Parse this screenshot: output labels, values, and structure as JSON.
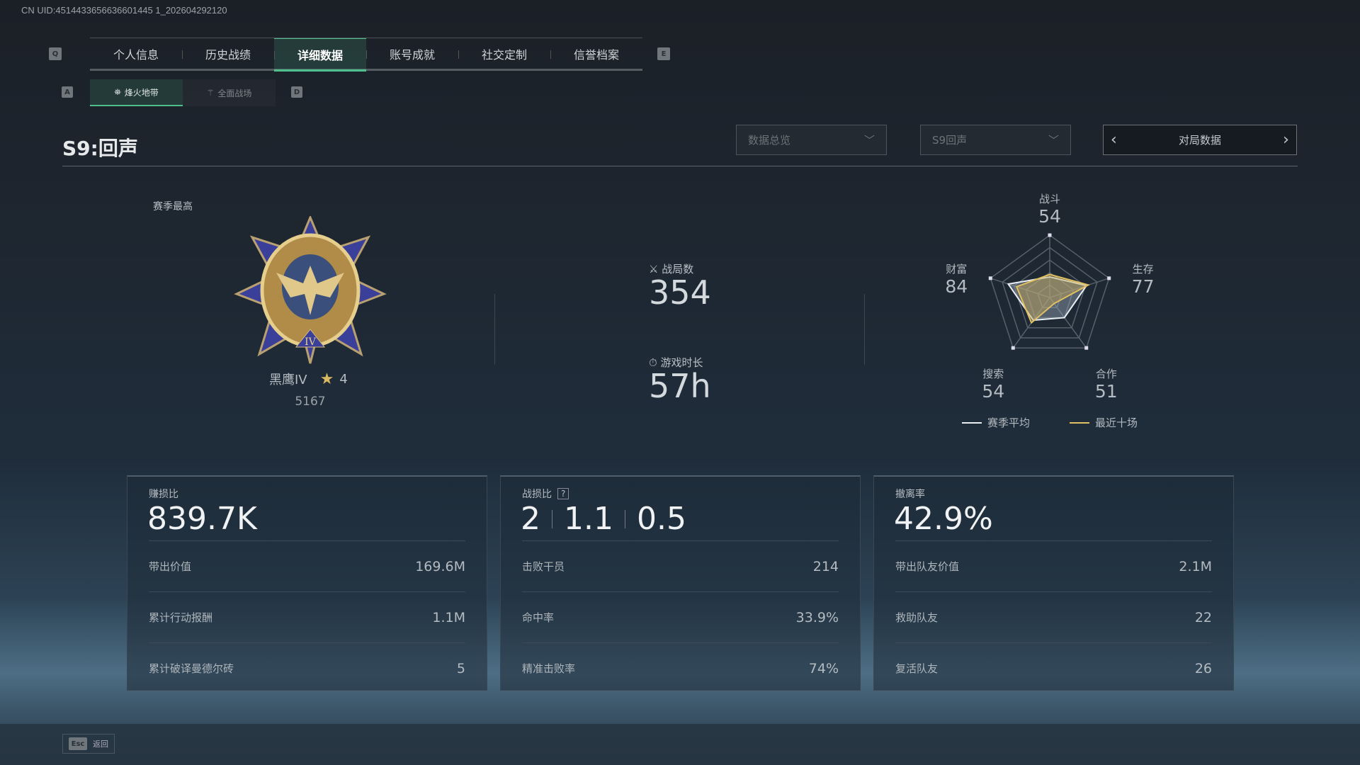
{
  "uid_text": "CN UID:4514433656636601445 1_202604292120",
  "tabs": {
    "prev_key": "Q",
    "next_key": "E",
    "items": [
      "个人信息",
      "历史战绩",
      "详细数据",
      "账号成就",
      "社交定制",
      "信誉档案"
    ],
    "active": "详细数据"
  },
  "subtabs": {
    "prev_key": "A",
    "next_key": "D",
    "items": [
      "烽火地带",
      "全面战场"
    ],
    "active": "烽火地带"
  },
  "season_title": "S9:回声",
  "filters": {
    "overview": "数据总览",
    "season": "S9回声",
    "mode": "对局数据"
  },
  "rank": {
    "label": "赛季最高",
    "name": "黑鹰IV",
    "stars": "4",
    "score": "5167"
  },
  "summary": {
    "matches_label": "战局数",
    "matches": "354",
    "time_label": "游戏时长",
    "time": "57h"
  },
  "chart_data": {
    "type": "radar",
    "axes": [
      "战斗",
      "生存",
      "合作",
      "搜索",
      "财富"
    ],
    "axis_values": [
      "54",
      "77",
      "51",
      "54",
      "84"
    ],
    "range": [
      0,
      100
    ],
    "series": [
      {
        "name": "赛季平均",
        "color": "#e8eef2",
        "values": [
          33,
          62,
          40,
          45,
          70
        ]
      },
      {
        "name": "最近十场",
        "color": "#e0c060",
        "values": [
          37,
          65,
          12,
          50,
          56
        ]
      }
    ]
  },
  "cards": [
    {
      "title": "赚损比",
      "value": "839.7K",
      "rows": [
        {
          "label": "带出价值",
          "value": "169.6M"
        },
        {
          "label": "累计行动报酬",
          "value": "1.1M"
        },
        {
          "label": "累计破译曼德尔砖",
          "value": "5"
        }
      ]
    },
    {
      "title": "战损比",
      "help": "?",
      "values": [
        "2",
        "1.1",
        "0.5"
      ],
      "rows": [
        {
          "label": "击败干员",
          "value": "214"
        },
        {
          "label": "命中率",
          "value": "33.9%"
        },
        {
          "label": "精准击败率",
          "value": "74%"
        }
      ]
    },
    {
      "title": "撤离率",
      "value": "42.9%",
      "rows": [
        {
          "label": "带出队友价值",
          "value": "2.1M"
        },
        {
          "label": "救助队友",
          "value": "22"
        },
        {
          "label": "复活队友",
          "value": "26"
        }
      ]
    }
  ],
  "footer": {
    "key": "Esc",
    "label": "返回"
  },
  "colors": {
    "accent": "#4fc08d",
    "gold": "#e0c060"
  }
}
